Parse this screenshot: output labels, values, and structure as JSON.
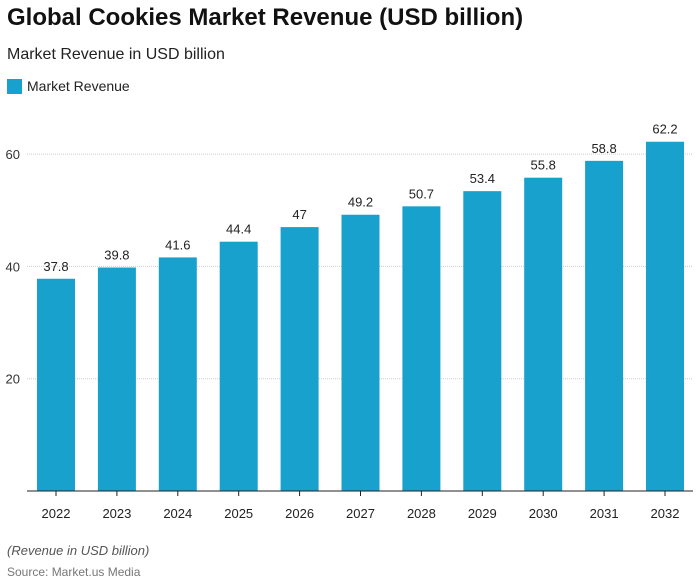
{
  "chart_data": {
    "type": "bar",
    "title": "Global Cookies Market Revenue (USD billion)",
    "subtitle": "Market Revenue in USD billion",
    "categories": [
      "2022",
      "2023",
      "2024",
      "2025",
      "2026",
      "2027",
      "2028",
      "2029",
      "2030",
      "2031",
      "2032"
    ],
    "series": [
      {
        "name": "Market Revenue",
        "values": [
          37.8,
          39.8,
          41.6,
          44.4,
          47,
          49.2,
          50.7,
          53.4,
          55.8,
          58.8,
          62.2
        ],
        "color": "#18a1cd"
      }
    ],
    "yticks": [
      20,
      40,
      60
    ],
    "ylim": [
      0,
      62.2
    ],
    "grid": true,
    "legend": "top-left",
    "note": "(Revenue in USD billion)",
    "source": "Source: Market.us Media"
  }
}
